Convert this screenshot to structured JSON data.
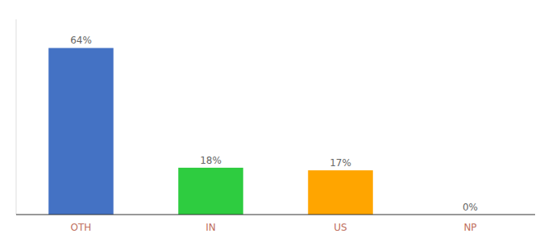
{
  "chart_data": {
    "type": "bar",
    "categories": [
      "OTH",
      "IN",
      "US",
      "NP"
    ],
    "values": [
      64,
      18,
      17,
      0
    ],
    "value_labels": [
      "64%",
      "18%",
      "17%",
      "0%"
    ],
    "colors": [
      "#4472C4",
      "#2ECC40",
      "#FFA500",
      "#A0C0E8"
    ],
    "ylim": [
      0,
      75
    ],
    "data_labels": true,
    "tick_labels": "x",
    "grid": false
  }
}
